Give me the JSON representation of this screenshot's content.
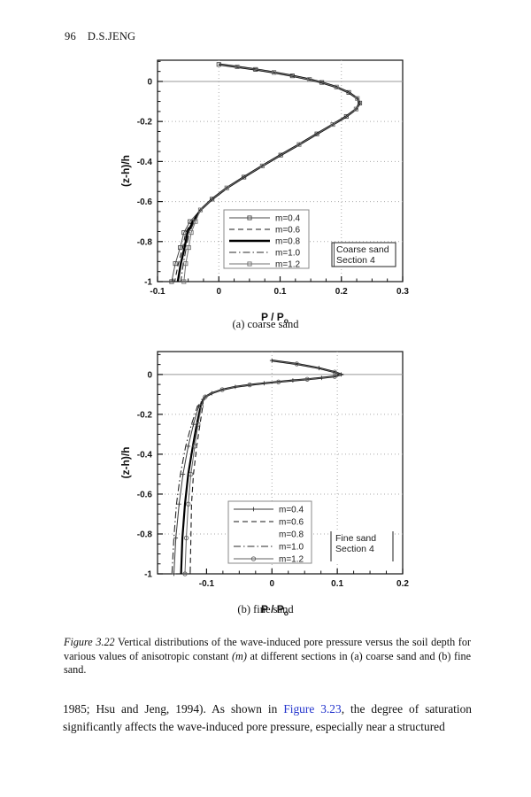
{
  "page": {
    "number": "96",
    "running_title": "D.S.JENG"
  },
  "colors": {
    "link": "#2233cc",
    "ink": "#111111",
    "grid": "#aaaaaa",
    "zero_line": "#999999"
  },
  "figure": {
    "subcaption_a": "(a) coarse sand",
    "subcaption_b": "(b) fine sand",
    "caption": {
      "part0": "Figure 3.22",
      "part1": " Vertical distributions of the wave-induced pore pressure versus the soil depth for various values of anisotropic constant ",
      "part2": "(m)",
      "part3": " at different sections in (a) coarse sand and (b) fine sand."
    }
  },
  "body": {
    "pre": "1985; Hsu and Jeng, 1994). As shown in ",
    "link": "Figure 3.23",
    "post": ", the degree of saturation significantly affects the wave-induced pore pressure, especially near a structured"
  },
  "chart_data": [
    {
      "type": "line",
      "title": "",
      "xlabel": {
        "main": "P / P",
        "sub": "o"
      },
      "ylabel": "(z-h)/h",
      "xlim": [
        -0.1,
        0.3
      ],
      "ylim": [
        -1,
        0.106
      ],
      "xticks": {
        "values": [
          -0.1,
          0,
          0.1,
          0.2,
          0.3
        ],
        "labels": [
          "-0.1",
          "0",
          "0.1",
          "0.2",
          "0.3"
        ]
      },
      "yticks": {
        "values": [
          0,
          -0.2,
          -0.4,
          -0.6,
          -0.8,
          -1
        ],
        "labels": [
          "0",
          "-0.2",
          "-0.4",
          "-0.6",
          "-0.8",
          "-1"
        ]
      },
      "minor_x_step": 0.025,
      "minor_y_step": 0.05,
      "grid_x": [
        0,
        0.2
      ],
      "grid_y": [
        -0.2,
        -0.4,
        -0.6,
        -0.8
      ],
      "zero_line": true,
      "legend_position": "inside lower-center",
      "box_label": [
        "Coarse sand",
        "Section 4"
      ],
      "trunk": [
        [
          0.0,
          0.085
        ],
        [
          0.03,
          0.073
        ],
        [
          0.06,
          0.06
        ],
        [
          0.09,
          0.045
        ],
        [
          0.12,
          0.028
        ],
        [
          0.148,
          0.01
        ],
        [
          0.168,
          -0.005
        ],
        [
          0.192,
          -0.028
        ],
        [
          0.212,
          -0.055
        ],
        [
          0.226,
          -0.085
        ],
        [
          0.23,
          -0.108
        ],
        [
          0.224,
          -0.138
        ],
        [
          0.208,
          -0.175
        ],
        [
          0.186,
          -0.215
        ],
        [
          0.16,
          -0.262
        ],
        [
          0.131,
          -0.315
        ],
        [
          0.101,
          -0.368
        ],
        [
          0.071,
          -0.422
        ],
        [
          0.041,
          -0.478
        ],
        [
          0.013,
          -0.532
        ],
        [
          -0.011,
          -0.588
        ],
        [
          -0.03,
          -0.642
        ]
      ],
      "series": [
        {
          "name": "m=0.4",
          "line": "solid",
          "width": 1,
          "color": "#4a4a4a",
          "marker": "square",
          "legend_swatch": true,
          "tail": [
            [
              -0.047,
              -0.7
            ],
            [
              -0.057,
              -0.755
            ],
            [
              -0.063,
              -0.83
            ],
            [
              -0.071,
              -0.91
            ],
            [
              -0.077,
              -1
            ]
          ]
        },
        {
          "name": "m=0.6",
          "line": "dashed",
          "width": 1.1,
          "color": "#1a1a1a",
          "marker": "none",
          "legend_swatch": true,
          "tail": [
            [
              -0.044,
              -0.7
            ],
            [
              -0.054,
              -0.755
            ],
            [
              -0.059,
              -0.83
            ],
            [
              -0.066,
              -0.91
            ],
            [
              -0.072,
              -1
            ]
          ]
        },
        {
          "name": "m=0.8",
          "line": "solid",
          "width": 2.4,
          "color": "#000000",
          "marker": "none",
          "legend_swatch": true,
          "tail": [
            [
              -0.042,
              -0.7
            ],
            [
              -0.051,
              -0.755
            ],
            [
              -0.056,
              -0.83
            ],
            [
              -0.062,
              -0.91
            ],
            [
              -0.067,
              -1
            ]
          ]
        },
        {
          "name": "m=1.0",
          "line": "dashdot",
          "width": 1.1,
          "color": "#2a2a2a",
          "marker": "none",
          "legend_swatch": true,
          "tail": [
            [
              -0.04,
              -0.7
            ],
            [
              -0.048,
              -0.755
            ],
            [
              -0.053,
              -0.83
            ],
            [
              -0.058,
              -0.91
            ],
            [
              -0.062,
              -1
            ]
          ]
        },
        {
          "name": "m=1.2",
          "line": "solid",
          "width": 1,
          "color": "#707070",
          "marker": "square",
          "legend_swatch": true,
          "tail": [
            [
              -0.038,
              -0.7
            ],
            [
              -0.045,
              -0.755
            ],
            [
              -0.049,
              -0.83
            ],
            [
              -0.054,
              -0.91
            ],
            [
              -0.057,
              -1
            ]
          ]
        }
      ]
    },
    {
      "type": "line",
      "title": "",
      "xlabel": {
        "main": "P / P",
        "sub": "o"
      },
      "ylabel": "(z-h)/h",
      "xlim": [
        -0.175,
        0.2
      ],
      "ylim": [
        -1,
        0.115
      ],
      "xticks": {
        "values": [
          -0.1,
          0,
          0.1,
          0.2
        ],
        "labels": [
          "-0.1",
          "0",
          "0.1",
          "0.2"
        ]
      },
      "yticks": {
        "values": [
          0,
          -0.2,
          -0.4,
          -0.6,
          -0.8,
          -1
        ],
        "labels": [
          "0",
          "-0.2",
          "-0.4",
          "-0.6",
          "-0.8",
          "-1"
        ]
      },
      "minor_x_step": 0.025,
      "minor_y_step": 0.05,
      "grid_x": [
        0,
        0.1
      ],
      "grid_y": [
        -0.2,
        -0.4,
        -0.6,
        -0.8
      ],
      "zero_line": true,
      "legend_position": "inside lower-center",
      "box_label": [
        "Fine sand",
        "Section 4"
      ],
      "trunk": [
        [
          0.0,
          0.07
        ],
        [
          0.038,
          0.053
        ],
        [
          0.072,
          0.032
        ],
        [
          0.096,
          0.012
        ],
        [
          0.106,
          0.0
        ],
        [
          0.096,
          -0.01
        ],
        [
          0.076,
          -0.017
        ],
        [
          0.054,
          -0.024
        ],
        [
          0.032,
          -0.03
        ],
        [
          0.01,
          -0.037
        ],
        [
          -0.012,
          -0.044
        ],
        [
          -0.034,
          -0.052
        ],
        [
          -0.056,
          -0.062
        ],
        [
          -0.076,
          -0.076
        ],
        [
          -0.092,
          -0.094
        ],
        [
          -0.102,
          -0.112
        ],
        [
          -0.105,
          -0.125
        ]
      ],
      "series": [
        {
          "name": "m=0.4",
          "line": "solid",
          "width": 1,
          "color": "#3a3a3a",
          "marker": "plus",
          "legend_swatch": true,
          "tail": [
            [
              -0.112,
              -0.16
            ],
            [
              -0.12,
              -0.25
            ],
            [
              -0.128,
              -0.36
            ],
            [
              -0.136,
              -0.5
            ],
            [
              -0.142,
              -0.65
            ],
            [
              -0.147,
              -0.82
            ],
            [
              -0.15,
              -1
            ]
          ]
        },
        {
          "name": "m=0.6",
          "line": "dashed",
          "width": 1.1,
          "color": "#1a1a1a",
          "marker": "none",
          "legend_swatch": true,
          "tail": [
            [
              -0.106,
              -0.16
            ],
            [
              -0.11,
              -0.25
            ],
            [
              -0.115,
              -0.36
            ],
            [
              -0.12,
              -0.5
            ],
            [
              -0.123,
              -0.65
            ],
            [
              -0.124,
              -0.82
            ],
            [
              -0.125,
              -1
            ]
          ]
        },
        {
          "name": "m=0.8",
          "line": "solid",
          "width": 2.2,
          "color": "#000000",
          "marker": "none",
          "legend_swatch": false,
          "tail": [
            [
              -0.109,
              -0.16
            ],
            [
              -0.115,
              -0.25
            ],
            [
              -0.121,
              -0.36
            ],
            [
              -0.128,
              -0.5
            ],
            [
              -0.133,
              -0.65
            ],
            [
              -0.137,
              -0.82
            ],
            [
              -0.139,
              -1
            ]
          ]
        },
        {
          "name": "m=1.0",
          "line": "dashdot",
          "width": 1.1,
          "color": "#2a2a2a",
          "marker": "none",
          "legend_swatch": true,
          "tail": [
            [
              -0.114,
              -0.16
            ],
            [
              -0.123,
              -0.25
            ],
            [
              -0.132,
              -0.36
            ],
            [
              -0.14,
              -0.5
            ],
            [
              -0.146,
              -0.65
            ],
            [
              -0.15,
              -0.82
            ],
            [
              -0.153,
              -1
            ]
          ]
        },
        {
          "name": "m=1.2",
          "line": "solid",
          "width": 1,
          "color": "#606060",
          "marker": "circle",
          "legend_swatch": true,
          "tail": [
            [
              -0.108,
              -0.16
            ],
            [
              -0.113,
              -0.25
            ],
            [
              -0.118,
              -0.36
            ],
            [
              -0.124,
              -0.5
            ],
            [
              -0.128,
              -0.65
            ],
            [
              -0.131,
              -0.82
            ],
            [
              -0.133,
              -1
            ]
          ]
        }
      ]
    }
  ]
}
